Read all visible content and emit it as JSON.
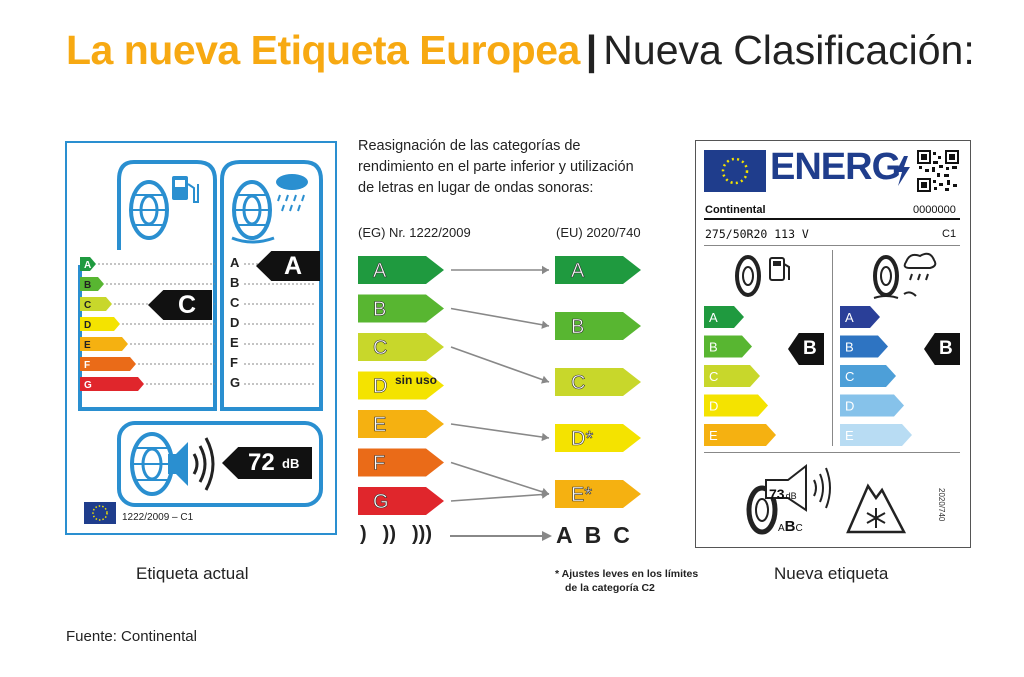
{
  "title": {
    "part1": "La nueva Etiqueta Europea",
    "separator": "|",
    "part2": "Nueva Clasificación:"
  },
  "middle": {
    "description": [
      "Reasignación de las categorías de",
      "rendimiento en el parte inferior y utilización",
      "de letras en lugar de ondas sonoras:"
    ],
    "old_regulation": "(EG) Nr. 1222/2009",
    "new_regulation": "(EU) 2020/740",
    "old_classes": [
      "A",
      "B",
      "C",
      "D",
      "E",
      "F",
      "G"
    ],
    "d_note": "sin uso",
    "new_classes": [
      "A",
      "B",
      "C",
      "D*",
      "E*"
    ],
    "mappings": [
      [
        "A",
        "A"
      ],
      [
        "B",
        "B"
      ],
      [
        "C",
        "C"
      ],
      [
        "E",
        "D*"
      ],
      [
        "F",
        "E*"
      ],
      [
        "G",
        "E*"
      ]
    ],
    "noise_waves": [
      ")",
      "))",
      ")))"
    ],
    "noise_letters": [
      "A",
      "B",
      "C"
    ],
    "footnote": [
      "* Ajustes leves en los límites",
      "de la categoría C2"
    ]
  },
  "old_label": {
    "caption": "Etiqueta actual",
    "fuel_classes": [
      "A",
      "B",
      "C",
      "D",
      "E",
      "F",
      "G"
    ],
    "fuel_rating": "C",
    "wet_classes": [
      "A",
      "B",
      "C",
      "D",
      "E",
      "F",
      "G"
    ],
    "wet_rating": "A",
    "noise_value": "72",
    "noise_unit": "dB",
    "regulation": "1222/2009 – C1"
  },
  "new_label": {
    "caption": "Nueva etiqueta",
    "energy_text": "ENERG",
    "brand": "Continental",
    "code": "0000000",
    "tyre_size": "275/50R20 113 V",
    "tyre_class": "C1",
    "fuel_classes": [
      "A",
      "B",
      "C",
      "D",
      "E"
    ],
    "fuel_rating": "B",
    "wet_classes": [
      "A",
      "B",
      "C",
      "D",
      "E"
    ],
    "wet_rating": "B",
    "noise_value": "73",
    "noise_unit": "dB",
    "noise_letters": [
      "A",
      "B",
      "C"
    ],
    "regulation_vertical": "2020/740"
  },
  "source": "Fuente: Continental",
  "colors": {
    "accent_yellow": "#f7a912",
    "label_blue": "#2a8fd0",
    "eu_blue": "#1f3d8c",
    "grade_A": "#1f9a3f",
    "grade_B": "#58b631",
    "grade_C": "#c8d72b",
    "grade_D": "#f4e300",
    "grade_E": "#f5b111",
    "grade_F": "#ea6b18",
    "grade_G": "#e0262c"
  }
}
